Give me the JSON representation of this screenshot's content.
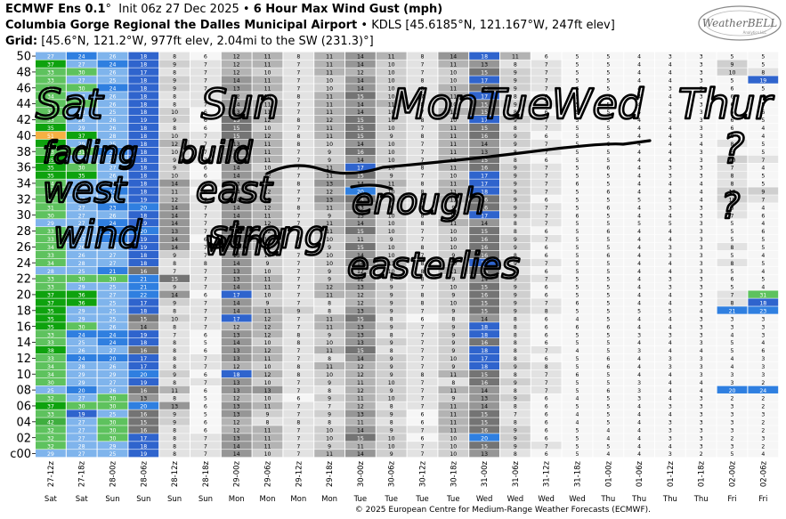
{
  "header": {
    "model": "ECMWF Ens 0.1",
    "init": "Init 06z 27 Dec 2025",
    "product": "6 Hour Max Wind Gust (mph)",
    "site": "Columbia Gorge Regional the Dalles Municipal Airport",
    "station": "KDLS [45.6185°N, 121.167°W, 247ft elev]",
    "grid_label": "Grid:",
    "grid": "[45.6°N, 121.2°W, 977ft elev, 2.04mi to the SW (231.3)°]"
  },
  "logo": {
    "name": "WeatherBELL",
    "sub": "Analytics LLC"
  },
  "copyright": "© 2025 European Centre for Medium-Range Weather Forecasts (ECMWF).",
  "annotations": [
    "Sat",
    "Sun",
    "Mon",
    "Tue",
    "Wed",
    "Thur",
    "fading",
    "build",
    "?",
    "west",
    "east",
    "wind",
    "strong",
    "enough",
    "?",
    "wind",
    "easterlies"
  ],
  "chart_data": {
    "type": "heatmap",
    "title": "6 Hour Max Wind Gust (mph)",
    "x": [
      "27-12z",
      "27-18z",
      "28-00z",
      "28-06z",
      "28-12z",
      "28-18z",
      "29-00z",
      "29-06z",
      "29-12z",
      "29-18z",
      "30-00z",
      "30-06z",
      "30-12z",
      "30-18z",
      "31-00z",
      "31-06z",
      "31-12z",
      "31-18z",
      "01-00z",
      "01-06z",
      "01-12z",
      "01-18z",
      "02-00z",
      "02-06z"
    ],
    "days": [
      "Sat",
      "Sat",
      "Sun",
      "Sun",
      "Sun",
      "Sun",
      "Mon",
      "Mon",
      "Mon",
      "Mon",
      "Tue",
      "Tue",
      "Tue",
      "Tue",
      "Wed",
      "Wed",
      "Wed",
      "Wed",
      "Thu",
      "Thu",
      "Thu",
      "Thu",
      "Fri",
      "Fri"
    ],
    "y": [
      "c00",
      "01",
      "02",
      "03",
      "04",
      "05",
      "06",
      "07",
      "08",
      "09",
      "10",
      "11",
      "12",
      "13",
      "14",
      "15",
      "16",
      "17",
      "18",
      "19",
      "20",
      "21",
      "22",
      "23",
      "24",
      "25",
      "26",
      "27",
      "28",
      "29",
      "30",
      "31",
      "32",
      "33",
      "34",
      "35",
      "36",
      "37",
      "38",
      "39",
      "40",
      "41",
      "42",
      "43",
      "44",
      "45",
      "46",
      "47",
      "48",
      "49",
      "50"
    ],
    "y_ticks": [
      "c00",
      "02",
      "04",
      "06",
      "08",
      "10",
      "12",
      "14",
      "16",
      "18",
      "20",
      "22",
      "24",
      "26",
      "28",
      "30",
      "32",
      "34",
      "36",
      "38",
      "40",
      "42",
      "44",
      "46",
      "48",
      "50"
    ],
    "values": [
      [
        29,
        27,
        25,
        19,
        8,
        7,
        14,
        10,
        7,
        11,
        14,
        9,
        7,
        10,
        13,
        8,
        6,
        5,
        4,
        4,
        3,
        2,
        5,
        4
      ],
      [
        32,
        28,
        29,
        18,
        8,
        7,
        14,
        11,
        7,
        9,
        11,
        10,
        7,
        10,
        15,
        9,
        7,
        5,
        5,
        4,
        4,
        3,
        3,
        2
      ],
      [
        32,
        27,
        30,
        17,
        8,
        7,
        13,
        11,
        7,
        10,
        15,
        10,
        6,
        10,
        20,
        9,
        6,
        5,
        4,
        4,
        3,
        3,
        2,
        3
      ],
      [
        32,
        27,
        30,
        16,
        8,
        6,
        12,
        11,
        7,
        10,
        14,
        9,
        7,
        11,
        16,
        9,
        6,
        5,
        4,
        4,
        3,
        3,
        3,
        2
      ],
      [
        42,
        27,
        30,
        15,
        9,
        6,
        12,
        8,
        8,
        8,
        11,
        8,
        6,
        11,
        15,
        8,
        6,
        4,
        5,
        4,
        3,
        3,
        3,
        2
      ],
      [
        33,
        19,
        25,
        16,
        9,
        5,
        13,
        9,
        7,
        9,
        13,
        9,
        6,
        11,
        15,
        7,
        6,
        4,
        5,
        4,
        4,
        3,
        3,
        3
      ],
      [
        37,
        30,
        30,
        20,
        13,
        6,
        13,
        11,
        7,
        7,
        12,
        8,
        7,
        11,
        14,
        8,
        6,
        5,
        5,
        4,
        3,
        3,
        3,
        2
      ],
      [
        32,
        27,
        30,
        13,
        8,
        5,
        12,
        10,
        6,
        9,
        11,
        10,
        7,
        9,
        13,
        9,
        6,
        4,
        5,
        3,
        4,
        3,
        2,
        2
      ],
      [
        25,
        20,
        26,
        16,
        11,
        6,
        13,
        13,
        7,
        8,
        12,
        9,
        7,
        11,
        14,
        8,
        7,
        5,
        6,
        3,
        4,
        4,
        20,
        24
      ],
      [
        30,
        29,
        27,
        19,
        8,
        7,
        13,
        10,
        7,
        9,
        11,
        10,
        7,
        8,
        16,
        9,
        7,
        5,
        5,
        3,
        4,
        4,
        3,
        2
      ],
      [
        34,
        29,
        29,
        20,
        9,
        6,
        18,
        12,
        8,
        10,
        12,
        9,
        8,
        11,
        15,
        8,
        7,
        6,
        5,
        4,
        4,
        3,
        3,
        3
      ],
      [
        34,
        28,
        26,
        17,
        8,
        7,
        12,
        10,
        8,
        11,
        12,
        9,
        7,
        9,
        18,
        9,
        8,
        5,
        6,
        4,
        3,
        3,
        4,
        3
      ],
      [
        33,
        24,
        20,
        17,
        8,
        7,
        13,
        11,
        7,
        8,
        14,
        9,
        7,
        10,
        17,
        8,
        6,
        5,
        6,
        4,
        3,
        3,
        4,
        3
      ],
      [
        38,
        26,
        27,
        16,
        8,
        6,
        13,
        12,
        7,
        11,
        15,
        8,
        7,
        9,
        18,
        8,
        7,
        4,
        5,
        3,
        4,
        4,
        5,
        6
      ],
      [
        33,
        25,
        24,
        18,
        8,
        5,
        14,
        10,
        8,
        10,
        13,
        9,
        7,
        9,
        16,
        8,
        6,
        5,
        5,
        4,
        4,
        3,
        5,
        4
      ],
      [
        33,
        24,
        24,
        19,
        7,
        6,
        13,
        12,
        8,
        9,
        13,
        8,
        7,
        9,
        18,
        8,
        6,
        5,
        5,
        3,
        3,
        3,
        4,
        3
      ],
      [
        35,
        30,
        26,
        14,
        8,
        7,
        12,
        12,
        7,
        11,
        13,
        9,
        7,
        9,
        18,
        8,
        6,
        6,
        6,
        4,
        4,
        3,
        3,
        3
      ],
      [
        35,
        29,
        25,
        15,
        10,
        7,
        17,
        12,
        7,
        11,
        15,
        8,
        6,
        8,
        14,
        8,
        6,
        4,
        5,
        4,
        4,
        3,
        3,
        3
      ],
      [
        35,
        29,
        25,
        18,
        8,
        7,
        14,
        11,
        9,
        8,
        13,
        9,
        7,
        9,
        15,
        9,
        8,
        5,
        5,
        5,
        5,
        4,
        21,
        23
      ],
      [
        37,
        36,
        25,
        17,
        9,
        7,
        14,
        9,
        7,
        8,
        12,
        9,
        8,
        10,
        15,
        9,
        7,
        6,
        5,
        4,
        4,
        3,
        8,
        18
      ],
      [
        37,
        36,
        27,
        22,
        14,
        6,
        17,
        10,
        7,
        11,
        12,
        9,
        8,
        9,
        16,
        9,
        6,
        5,
        5,
        4,
        4,
        3,
        7,
        31
      ],
      [
        33,
        29,
        25,
        21,
        9,
        7,
        14,
        11,
        7,
        12,
        13,
        9,
        7,
        10,
        15,
        9,
        6,
        5,
        5,
        4,
        3,
        3,
        5,
        4
      ],
      [
        33,
        30,
        30,
        21,
        15,
        7,
        13,
        11,
        7,
        9,
        12,
        8,
        8,
        9,
        14,
        9,
        7,
        5,
        5,
        4,
        3,
        3,
        6,
        5
      ],
      [
        28,
        25,
        21,
        16,
        7,
        7,
        13,
        10,
        7,
        9,
        12,
        10,
        8,
        11,
        16,
        8,
        6,
        5,
        5,
        4,
        4,
        3,
        5,
        4
      ],
      [
        34,
        28,
        27,
        18,
        8,
        8,
        14,
        9,
        7,
        10,
        14,
        11,
        8,
        10,
        17,
        9,
        7,
        5,
        5,
        4,
        4,
        3,
        8,
        5
      ],
      [
        33,
        26,
        27,
        18,
        9,
        7,
        13,
        10,
        7,
        10,
        14,
        10,
        7,
        9,
        16,
        8,
        6,
        5,
        6,
        4,
        3,
        3,
        5,
        4
      ],
      [
        34,
        26,
        26,
        19,
        14,
        7,
        14,
        11,
        7,
        9,
        15,
        10,
        8,
        10,
        16,
        9,
        6,
        5,
        5,
        4,
        3,
        3,
        8,
        5
      ],
      [
        33,
        27,
        21,
        19,
        14,
        6,
        15,
        11,
        7,
        10,
        11,
        9,
        7,
        10,
        16,
        9,
        7,
        5,
        5,
        4,
        4,
        3,
        5,
        5
      ],
      [
        33,
        27,
        23,
        20,
        13,
        7,
        15,
        12,
        8,
        11,
        15,
        10,
        7,
        10,
        15,
        8,
        6,
        5,
        6,
        4,
        4,
        3,
        5,
        6
      ],
      [
        29,
        27,
        24,
        19,
        14,
        7,
        14,
        12,
        7,
        11,
        14,
        10,
        8,
        11,
        14,
        8,
        7,
        5,
        5,
        5,
        5,
        3,
        5,
        4
      ],
      [
        30,
        27,
        26,
        18,
        14,
        7,
        14,
        11,
        7,
        9,
        13,
        10,
        8,
        10,
        17,
        9,
        7,
        6,
        5,
        4,
        4,
        3,
        7,
        6
      ],
      [
        31,
        27,
        23,
        20,
        14,
        7,
        14,
        12,
        8,
        11,
        13,
        9,
        8,
        9,
        16,
        9,
        7,
        5,
        6,
        4,
        3,
        3,
        8,
        4
      ],
      [
        33,
        27,
        26,
        19,
        12,
        7,
        14,
        12,
        7,
        13,
        15,
        9,
        8,
        11,
        16,
        9,
        6,
        5,
        5,
        5,
        5,
        4,
        10,
        7
      ],
      [
        33,
        27,
        24,
        18,
        11,
        6,
        14,
        12,
        7,
        12,
        20,
        10,
        8,
        11,
        18,
        9,
        7,
        5,
        6,
        4,
        4,
        4,
        10,
        9
      ],
      [
        34,
        28,
        25,
        18,
        14,
        7,
        13,
        12,
        8,
        13,
        14,
        11,
        8,
        11,
        17,
        9,
        7,
        6,
        5,
        4,
        4,
        4,
        8,
        5
      ],
      [
        35,
        35,
        26,
        18,
        10,
        6,
        14,
        12,
        7,
        11,
        15,
        9,
        7,
        10,
        17,
        9,
        7,
        5,
        5,
        4,
        3,
        3,
        8,
        5
      ],
      [
        35,
        30,
        27,
        18,
        9,
        6,
        14,
        10,
        7,
        11,
        17,
        10,
        8,
        11,
        16,
        9,
        7,
        5,
        6,
        4,
        3,
        3,
        7,
        4
      ],
      [
        35,
        29,
        27,
        18,
        9,
        7,
        14,
        11,
        7,
        9,
        14,
        10,
        7,
        11,
        15,
        8,
        6,
        5,
        5,
        4,
        4,
        3,
        10,
        7
      ],
      [
        33,
        31,
        24,
        18,
        10,
        7,
        14,
        11,
        7,
        9,
        16,
        10,
        7,
        11,
        13,
        8,
        7,
        5,
        5,
        4,
        4,
        3,
        6,
        5
      ],
      [
        35,
        29,
        25,
        18,
        12,
        7,
        13,
        11,
        8,
        10,
        14,
        10,
        7,
        11,
        14,
        9,
        7,
        5,
        6,
        4,
        4,
        4,
        8,
        5
      ],
      [
        51,
        37,
        28,
        18,
        10,
        7,
        15,
        12,
        8,
        11,
        15,
        9,
        8,
        11,
        16,
        9,
        6,
        5,
        5,
        4,
        4,
        3,
        6,
        4
      ],
      [
        35,
        29,
        26,
        18,
        8,
        6,
        15,
        10,
        7,
        11,
        15,
        10,
        7,
        11,
        15,
        8,
        7,
        5,
        5,
        4,
        4,
        3,
        6,
        4
      ],
      [
        33,
        26,
        26,
        19,
        9,
        6,
        15,
        12,
        8,
        12,
        15,
        10,
        8,
        10,
        17,
        9,
        7,
        5,
        5,
        4,
        3,
        3,
        6,
        5
      ],
      [
        33,
        28,
        25,
        18,
        10,
        6,
        13,
        11,
        7,
        11,
        14,
        10,
        7,
        11,
        15,
        8,
        6,
        5,
        5,
        4,
        4,
        3,
        6,
        6
      ],
      [
        33,
        30,
        26,
        18,
        8,
        7,
        14,
        11,
        7,
        11,
        14,
        11,
        8,
        10,
        15,
        9,
        7,
        5,
        5,
        4,
        4,
        3,
        6,
        5
      ],
      [
        34,
        27,
        26,
        18,
        8,
        7,
        12,
        10,
        8,
        11,
        15,
        10,
        7,
        11,
        17,
        8,
        6,
        5,
        5,
        4,
        4,
        3,
        6,
        4
      ],
      [
        33,
        30,
        24,
        18,
        9,
        7,
        13,
        11,
        7,
        10,
        14,
        10,
        8,
        11,
        16,
        9,
        7,
        6,
        5,
        4,
        3,
        3,
        6,
        5
      ],
      [
        33,
        27,
        25,
        18,
        9,
        7,
        14,
        11,
        7,
        10,
        14,
        10,
        8,
        10,
        17,
        9,
        7,
        5,
        5,
        4,
        4,
        3,
        5,
        19
      ],
      [
        33,
        30,
        26,
        17,
        8,
        7,
        12,
        10,
        7,
        11,
        12,
        10,
        7,
        10,
        15,
        9,
        7,
        5,
        5,
        4,
        4,
        3,
        10,
        8
      ],
      [
        37,
        27,
        24,
        18,
        9,
        7,
        12,
        11,
        7,
        11,
        14,
        10,
        7,
        11,
        13,
        8,
        7,
        5,
        5,
        4,
        4,
        3,
        9,
        5
      ],
      [
        27,
        24,
        26,
        18,
        8,
        6,
        12,
        11,
        8,
        11,
        14,
        11,
        8,
        14,
        18,
        11,
        6,
        5,
        5,
        4,
        3,
        3,
        5,
        5
      ]
    ]
  }
}
